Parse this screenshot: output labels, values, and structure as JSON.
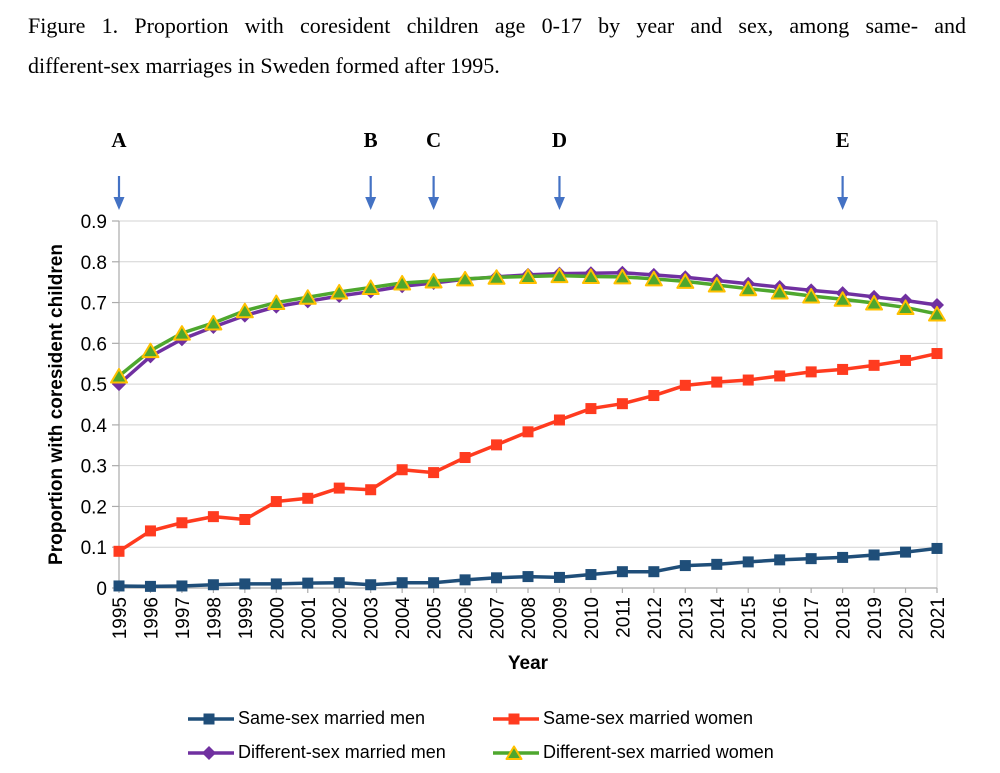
{
  "figure": {
    "title_line1": "Figure 1. Proportion with coresident children age 0-17 by year and sex, among same- and",
    "title_line2": "different-sex marriages in Sweden formed after 1995."
  },
  "chart_data": {
    "type": "line",
    "title": "Proportion with coresident children age 0-17 by year and sex, among same- and different-sex marriages in Sweden formed after 1995",
    "x": [
      1995,
      1996,
      1997,
      1998,
      1999,
      2000,
      2001,
      2002,
      2003,
      2004,
      2005,
      2006,
      2007,
      2008,
      2009,
      2010,
      2011,
      2012,
      2013,
      2014,
      2015,
      2016,
      2017,
      2018,
      2019,
      2020,
      2021
    ],
    "xlabel": "Year",
    "ylabel": "Proportion with coresident children",
    "ylim": [
      0,
      0.9
    ],
    "ytick_step": 0.1,
    "grid": "horizontal",
    "legend_position": "bottom",
    "annotation_arrow_color": "#4472C4",
    "annotations": [
      {
        "label": "A",
        "year": 1995
      },
      {
        "label": "B",
        "year": 2003
      },
      {
        "label": "C",
        "year": 2005
      },
      {
        "label": "D",
        "year": 2009
      },
      {
        "label": "E",
        "year": 2018
      }
    ],
    "series": [
      {
        "name": "Same-sex married men",
        "marker": "square",
        "color": "#1F4E79",
        "values": [
          0.005,
          0.004,
          0.005,
          0.008,
          0.01,
          0.01,
          0.012,
          0.013,
          0.008,
          0.013,
          0.013,
          0.02,
          0.025,
          0.028,
          0.026,
          0.033,
          0.04,
          0.04,
          0.055,
          0.058,
          0.064,
          0.069,
          0.072,
          0.075,
          0.081,
          0.088,
          0.097
        ]
      },
      {
        "name": "Same-sex married women",
        "marker": "square",
        "color": "#FF3B1F",
        "values": [
          0.09,
          0.14,
          0.16,
          0.175,
          0.168,
          0.212,
          0.22,
          0.245,
          0.241,
          0.29,
          0.283,
          0.32,
          0.351,
          0.383,
          0.412,
          0.44,
          0.452,
          0.472,
          0.497,
          0.505,
          0.51,
          0.52,
          0.53,
          0.536,
          0.546,
          0.558,
          0.575
        ]
      },
      {
        "name": "Different-sex married men",
        "marker": "diamond",
        "color": "#7030A0",
        "values": [
          0.5,
          0.568,
          0.61,
          0.64,
          0.668,
          0.69,
          0.703,
          0.716,
          0.727,
          0.74,
          0.748,
          0.757,
          0.763,
          0.768,
          0.771,
          0.772,
          0.773,
          0.768,
          0.762,
          0.754,
          0.746,
          0.738,
          0.73,
          0.723,
          0.714,
          0.705,
          0.694
        ]
      },
      {
        "name": "Different-sex married women",
        "marker": "triangle",
        "color": "#4EA72E",
        "marker_outline": "#FFC000",
        "values": [
          0.52,
          0.582,
          0.625,
          0.65,
          0.68,
          0.7,
          0.713,
          0.726,
          0.737,
          0.748,
          0.753,
          0.758,
          0.762,
          0.764,
          0.766,
          0.764,
          0.763,
          0.758,
          0.752,
          0.743,
          0.734,
          0.726,
          0.716,
          0.708,
          0.699,
          0.688,
          0.672
        ]
      }
    ]
  }
}
